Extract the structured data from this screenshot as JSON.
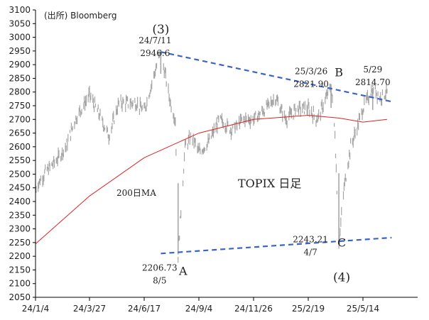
{
  "source_note": "(出所) Bloomberg",
  "chart_title": "TOPIX 日足",
  "colors": {
    "price": "#a6a6a6",
    "ma": "#e02020",
    "trendline": "#3a64c4",
    "ma_label": "#e02020",
    "axis": "#000000"
  },
  "chart_data": {
    "type": "line",
    "title": "TOPIX 日足",
    "xlabel": "",
    "ylabel": "",
    "ylim": [
      2050,
      3100
    ],
    "y_ticks": [
      2050,
      2100,
      2150,
      2200,
      2250,
      2300,
      2350,
      2400,
      2450,
      2500,
      2550,
      2600,
      2650,
      2700,
      2750,
      2800,
      2850,
      2900,
      2950,
      3000,
      3050,
      3100
    ],
    "x_ticks": [
      "24/1/4",
      "24/3/27",
      "24/6/17",
      "24/9/4",
      "24/11/26",
      "25/2/19",
      "25/5/14"
    ],
    "series": [
      {
        "name": "TOPIX",
        "style": "daily price bars",
        "points": [
          [
            "24/1/4",
            2450
          ],
          [
            "24/1/20",
            2510
          ],
          [
            "24/2/5",
            2550
          ],
          [
            "24/2/20",
            2600
          ],
          [
            "24/3/5",
            2700
          ],
          [
            "24/3/27",
            2790
          ],
          [
            "24/4/10",
            2720
          ],
          [
            "24/4/25",
            2640
          ],
          [
            "24/5/10",
            2760
          ],
          [
            "24/5/25",
            2760
          ],
          [
            "24/6/5",
            2760
          ],
          [
            "24/6/17",
            2730
          ],
          [
            "24/7/1",
            2860
          ],
          [
            "24/7/11",
            2946.6
          ],
          [
            "24/7/25",
            2760
          ],
          [
            "24/8/1",
            2700
          ],
          [
            "24/8/5",
            2206.73
          ],
          [
            "24/8/15",
            2600
          ],
          [
            "24/8/25",
            2640
          ],
          [
            "24/9/4",
            2580
          ],
          [
            "24/9/20",
            2620
          ],
          [
            "24/10/5",
            2700
          ],
          [
            "24/10/25",
            2660
          ],
          [
            "24/11/10",
            2700
          ],
          [
            "24/11/26",
            2700
          ],
          [
            "24/12/15",
            2740
          ],
          [
            "24/12/30",
            2780
          ],
          [
            "25/1/15",
            2700
          ],
          [
            "25/2/1",
            2740
          ],
          [
            "25/2/19",
            2740
          ],
          [
            "25/3/5",
            2700
          ],
          [
            "25/3/26",
            2821.9
          ],
          [
            "25/4/1",
            2650
          ],
          [
            "25/4/7",
            2243.21
          ],
          [
            "25/4/15",
            2450
          ],
          [
            "25/4/25",
            2600
          ],
          [
            "25/5/5",
            2670
          ],
          [
            "25/5/14",
            2740
          ],
          [
            "25/5/29",
            2814.7
          ],
          [
            "25/6/10",
            2780
          ],
          [
            "25/6/20",
            2800
          ]
        ]
      },
      {
        "name": "200日MA",
        "points": [
          [
            "24/1/4",
            2245
          ],
          [
            "24/3/27",
            2420
          ],
          [
            "24/6/17",
            2560
          ],
          [
            "24/9/4",
            2650
          ],
          [
            "24/11/26",
            2700
          ],
          [
            "25/2/19",
            2715
          ],
          [
            "25/4/7",
            2705
          ],
          [
            "25/5/14",
            2690
          ],
          [
            "25/6/20",
            2700
          ]
        ]
      },
      {
        "name": "upper trendline",
        "points": [
          [
            "24/7/11",
            2946.6
          ],
          [
            "25/6/27",
            2765
          ]
        ]
      },
      {
        "name": "lower trendline",
        "points": [
          [
            "24/7/11",
            2210
          ],
          [
            "25/6/27",
            2268
          ]
        ]
      }
    ],
    "annotations": [
      {
        "label": "(3)",
        "x": "24/7/11",
        "y": 2946.6
      },
      {
        "label": "24/7/11",
        "x": "24/7/11",
        "y": 2946.6
      },
      {
        "label": "2946.6",
        "x": "24/7/11",
        "y": 2946.6
      },
      {
        "label": "25/3/26",
        "x": "25/3/26",
        "y": 2821.9
      },
      {
        "label": "2821.90",
        "x": "25/3/26",
        "y": 2821.9
      },
      {
        "label": "B",
        "x": "25/3/26",
        "y": 2821.9
      },
      {
        "label": "5/29",
        "x": "25/5/29",
        "y": 2814.7
      },
      {
        "label": "2814.70",
        "x": "25/5/29",
        "y": 2814.7
      },
      {
        "label": "2206.73",
        "x": "24/8/5",
        "y": 2206.73
      },
      {
        "label": "8/5",
        "x": "24/8/5",
        "y": 2206.73
      },
      {
        "label": "A",
        "x": "24/8/5",
        "y": 2206.73
      },
      {
        "label": "2243.21",
        "x": "25/4/7",
        "y": 2243.21
      },
      {
        "label": "4/7",
        "x": "25/4/7",
        "y": 2243.21
      },
      {
        "label": "C",
        "x": "25/4/7",
        "y": 2243.21
      },
      {
        "label": "(4)",
        "x": "25/4/7",
        "y": 2243.21
      }
    ],
    "ma_label": "200日MA",
    "grid": false,
    "legend": "none"
  }
}
